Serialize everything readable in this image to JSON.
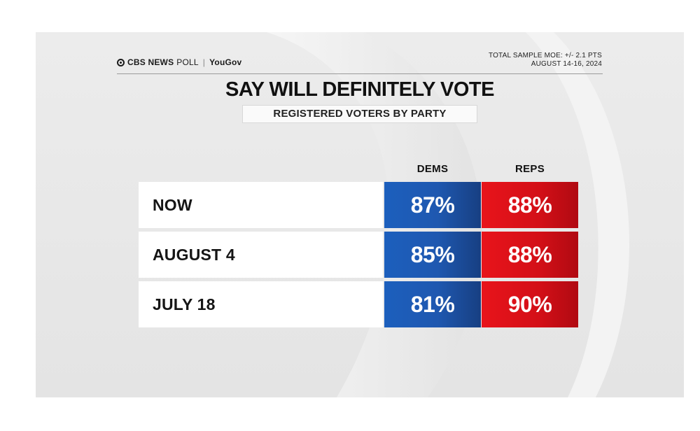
{
  "header": {
    "logo_brand": "CBS NEWS",
    "logo_poll": "POLL",
    "logo_partner": "YouGov",
    "moe_line1": "TOTAL SAMPLE MOE: +/- 2.1 PTS",
    "moe_line2": "AUGUST 14-16, 2024"
  },
  "chart_data": {
    "type": "table",
    "title": "SAY WILL DEFINITELY VOTE",
    "subtitle": "REGISTERED VOTERS BY PARTY",
    "columns": [
      "DEMS",
      "REPS"
    ],
    "rows": [
      {
        "label": "NOW",
        "values": [
          "87%",
          "88%"
        ]
      },
      {
        "label": "AUGUST 4",
        "values": [
          "85%",
          "88%"
        ]
      },
      {
        "label": "JULY 18",
        "values": [
          "81%",
          "90%"
        ]
      }
    ],
    "series": [
      {
        "name": "DEMS",
        "values": [
          87,
          85,
          81
        ],
        "color": "#1f58b0"
      },
      {
        "name": "REPS",
        "values": [
          88,
          88,
          90
        ],
        "color": "#d30f17"
      }
    ],
    "categories": [
      "NOW",
      "AUGUST 4",
      "JULY 18"
    ]
  }
}
